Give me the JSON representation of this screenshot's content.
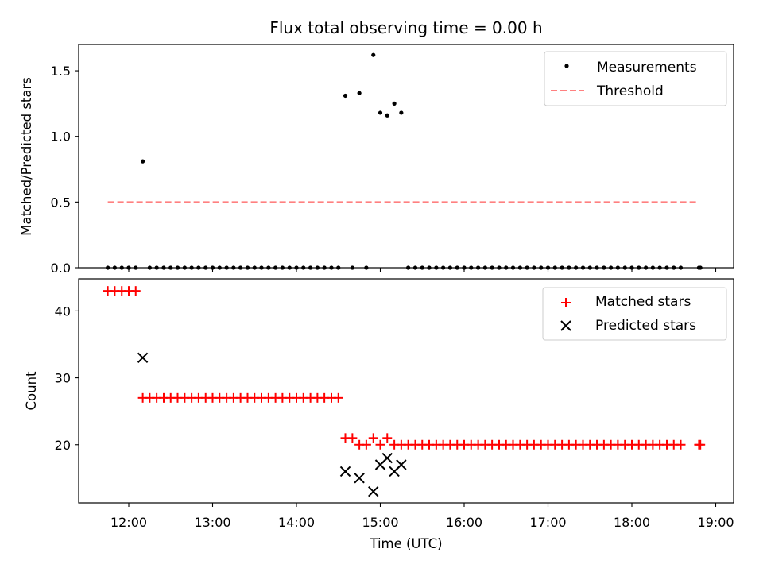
{
  "chart_data": {
    "type": "scatter",
    "title": "Flux total observing time = 0.00 h",
    "xlabel": "Time (UTC)",
    "x_ticks": [
      "12:00",
      "13:00",
      "14:00",
      "15:00",
      "16:00",
      "17:00",
      "18:00",
      "19:00"
    ],
    "panels": [
      {
        "name": "ratio",
        "ylabel": "Matched/Predicted stars",
        "ylim": [
          0,
          1.7
        ],
        "yticks": [
          "0.0",
          "0.5",
          "1.0",
          "1.5"
        ],
        "legend": {
          "position": "top-right"
        },
        "series": [
          {
            "name": "Measurements",
            "marker": "dot",
            "color": "#000000",
            "points": [
              [
                11.75,
                0
              ],
              [
                11.833,
                0
              ],
              [
                11.917,
                0
              ],
              [
                12.0,
                0
              ],
              [
                12.083,
                0
              ],
              [
                12.167,
                0.81
              ],
              [
                12.25,
                0
              ],
              [
                12.333,
                0
              ],
              [
                12.417,
                0
              ],
              [
                12.5,
                0
              ],
              [
                12.583,
                0
              ],
              [
                12.667,
                0
              ],
              [
                12.75,
                0
              ],
              [
                12.833,
                0
              ],
              [
                12.917,
                0
              ],
              [
                13.0,
                0
              ],
              [
                13.083,
                0
              ],
              [
                13.167,
                0
              ],
              [
                13.25,
                0
              ],
              [
                13.333,
                0
              ],
              [
                13.417,
                0
              ],
              [
                13.5,
                0
              ],
              [
                13.583,
                0
              ],
              [
                13.667,
                0
              ],
              [
                13.75,
                0
              ],
              [
                13.833,
                0
              ],
              [
                13.917,
                0
              ],
              [
                14.0,
                0
              ],
              [
                14.083,
                0
              ],
              [
                14.167,
                0
              ],
              [
                14.25,
                0
              ],
              [
                14.333,
                0
              ],
              [
                14.417,
                0
              ],
              [
                14.5,
                0
              ],
              [
                14.583,
                1.31
              ],
              [
                14.667,
                0
              ],
              [
                14.75,
                1.33
              ],
              [
                14.833,
                0
              ],
              [
                14.917,
                1.62
              ],
              [
                15.0,
                1.18
              ],
              [
                15.083,
                1.16
              ],
              [
                15.167,
                1.25
              ],
              [
                15.25,
                1.18
              ],
              [
                15.333,
                0
              ],
              [
                15.417,
                0
              ],
              [
                15.5,
                0
              ],
              [
                15.583,
                0
              ],
              [
                15.667,
                0
              ],
              [
                15.75,
                0
              ],
              [
                15.833,
                0
              ],
              [
                15.917,
                0
              ],
              [
                16.0,
                0
              ],
              [
                16.083,
                0
              ],
              [
                16.167,
                0
              ],
              [
                16.25,
                0
              ],
              [
                16.333,
                0
              ],
              [
                16.417,
                0
              ],
              [
                16.5,
                0
              ],
              [
                16.583,
                0
              ],
              [
                16.667,
                0
              ],
              [
                16.75,
                0
              ],
              [
                16.833,
                0
              ],
              [
                16.917,
                0
              ],
              [
                17.0,
                0
              ],
              [
                17.083,
                0
              ],
              [
                17.167,
                0
              ],
              [
                17.25,
                0
              ],
              [
                17.333,
                0
              ],
              [
                17.417,
                0
              ],
              [
                17.5,
                0
              ],
              [
                17.583,
                0
              ],
              [
                17.667,
                0
              ],
              [
                17.75,
                0
              ],
              [
                17.833,
                0
              ],
              [
                17.917,
                0
              ],
              [
                18.0,
                0
              ],
              [
                18.083,
                0
              ],
              [
                18.167,
                0
              ],
              [
                18.25,
                0
              ],
              [
                18.333,
                0
              ],
              [
                18.417,
                0
              ],
              [
                18.5,
                0
              ],
              [
                18.583,
                0
              ],
              [
                18.8,
                0
              ],
              [
                18.817,
                0
              ]
            ]
          },
          {
            "name": "Threshold",
            "style": "dashed-line",
            "color": "#ff8080",
            "points": [
              [
                11.75,
                0.5
              ],
              [
                18.8,
                0.5
              ]
            ]
          }
        ]
      },
      {
        "name": "counts",
        "ylabel": "Count",
        "ylim": [
          11.3,
          44.8
        ],
        "yticks": [
          "20",
          "30",
          "40"
        ],
        "legend": {
          "position": "top-right"
        },
        "series": [
          {
            "name": "Matched stars",
            "marker": "plus",
            "color": "#ff0000",
            "points": [
              [
                11.75,
                43
              ],
              [
                11.833,
                43
              ],
              [
                11.917,
                43
              ],
              [
                12.0,
                43
              ],
              [
                12.083,
                43
              ],
              [
                12.167,
                27
              ],
              [
                12.25,
                27
              ],
              [
                12.333,
                27
              ],
              [
                12.417,
                27
              ],
              [
                12.5,
                27
              ],
              [
                12.583,
                27
              ],
              [
                12.667,
                27
              ],
              [
                12.75,
                27
              ],
              [
                12.833,
                27
              ],
              [
                12.917,
                27
              ],
              [
                13.0,
                27
              ],
              [
                13.083,
                27
              ],
              [
                13.167,
                27
              ],
              [
                13.25,
                27
              ],
              [
                13.333,
                27
              ],
              [
                13.417,
                27
              ],
              [
                13.5,
                27
              ],
              [
                13.583,
                27
              ],
              [
                13.667,
                27
              ],
              [
                13.75,
                27
              ],
              [
                13.833,
                27
              ],
              [
                13.917,
                27
              ],
              [
                14.0,
                27
              ],
              [
                14.083,
                27
              ],
              [
                14.167,
                27
              ],
              [
                14.25,
                27
              ],
              [
                14.333,
                27
              ],
              [
                14.417,
                27
              ],
              [
                14.5,
                27
              ],
              [
                14.583,
                21
              ],
              [
                14.667,
                21
              ],
              [
                14.75,
                20
              ],
              [
                14.833,
                20
              ],
              [
                14.917,
                21
              ],
              [
                15.0,
                20
              ],
              [
                15.083,
                21
              ],
              [
                15.167,
                20
              ],
              [
                15.25,
                20
              ],
              [
                15.333,
                20
              ],
              [
                15.417,
                20
              ],
              [
                15.5,
                20
              ],
              [
                15.583,
                20
              ],
              [
                15.667,
                20
              ],
              [
                15.75,
                20
              ],
              [
                15.833,
                20
              ],
              [
                15.917,
                20
              ],
              [
                16.0,
                20
              ],
              [
                16.083,
                20
              ],
              [
                16.167,
                20
              ],
              [
                16.25,
                20
              ],
              [
                16.333,
                20
              ],
              [
                16.417,
                20
              ],
              [
                16.5,
                20
              ],
              [
                16.583,
                20
              ],
              [
                16.667,
                20
              ],
              [
                16.75,
                20
              ],
              [
                16.833,
                20
              ],
              [
                16.917,
                20
              ],
              [
                17.0,
                20
              ],
              [
                17.083,
                20
              ],
              [
                17.167,
                20
              ],
              [
                17.25,
                20
              ],
              [
                17.333,
                20
              ],
              [
                17.417,
                20
              ],
              [
                17.5,
                20
              ],
              [
                17.583,
                20
              ],
              [
                17.667,
                20
              ],
              [
                17.75,
                20
              ],
              [
                17.833,
                20
              ],
              [
                17.917,
                20
              ],
              [
                18.0,
                20
              ],
              [
                18.083,
                20
              ],
              [
                18.167,
                20
              ],
              [
                18.25,
                20
              ],
              [
                18.333,
                20
              ],
              [
                18.417,
                20
              ],
              [
                18.5,
                20
              ],
              [
                18.583,
                20
              ],
              [
                18.8,
                20
              ],
              [
                18.817,
                20
              ]
            ]
          },
          {
            "name": "Predicted stars",
            "marker": "x",
            "color": "#000000",
            "points": [
              [
                12.167,
                33
              ],
              [
                14.583,
                16
              ],
              [
                14.75,
                15
              ],
              [
                14.917,
                13
              ],
              [
                15.0,
                17
              ],
              [
                15.083,
                18
              ],
              [
                15.167,
                16
              ],
              [
                15.25,
                17
              ]
            ]
          }
        ]
      }
    ]
  }
}
